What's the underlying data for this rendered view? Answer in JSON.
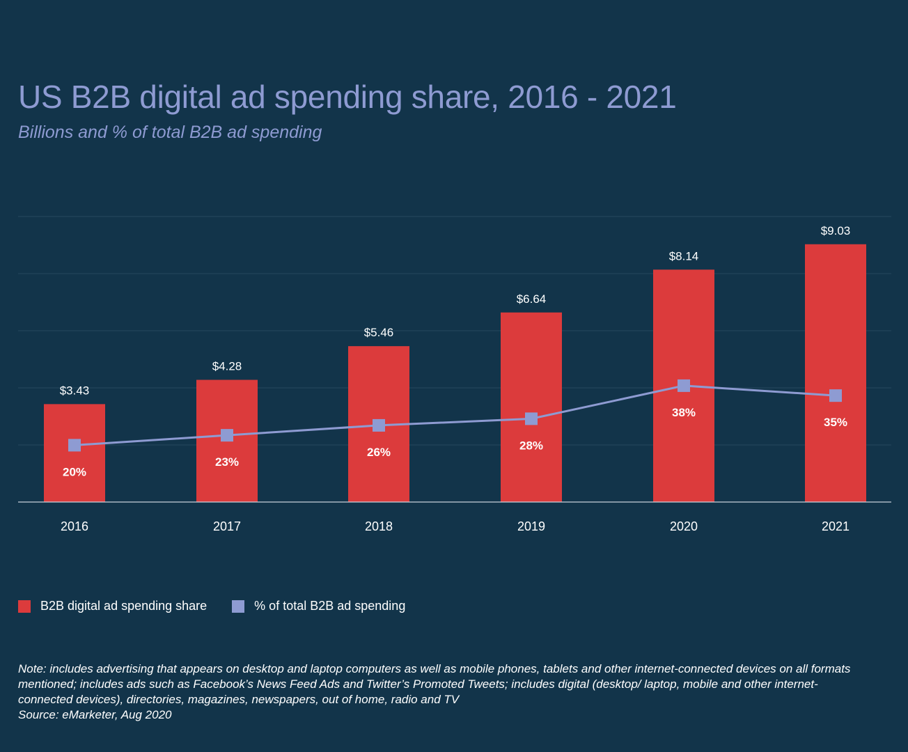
{
  "chart_data": {
    "type": "bar",
    "title": "US B2B digital ad spending share, 2016 - 2021",
    "subtitle": "Billions and % of total B2B ad spending",
    "categories": [
      "2016",
      "2017",
      "2018",
      "2019",
      "2020",
      "2021"
    ],
    "series": [
      {
        "name": "B2B digital ad spending share",
        "kind": "bar",
        "color": "#dc3b3c",
        "values": [
          3.43,
          4.28,
          5.46,
          6.64,
          8.14,
          9.03
        ],
        "labels": [
          "$3.43",
          "$4.28",
          "$5.46",
          "$6.64",
          "$8.14",
          "$9.03"
        ]
      },
      {
        "name": "% of total B2B ad spending",
        "kind": "line",
        "color": "#8e9bd2",
        "values": [
          20,
          23,
          26,
          28,
          38,
          35
        ],
        "labels": [
          "20%",
          "23%",
          "26%",
          "28%",
          "38%",
          "35%"
        ]
      }
    ],
    "xlabel": "",
    "ylabel": "",
    "grid": true,
    "legend_position": "bottom-left"
  },
  "footnote": {
    "note": "Note: includes advertising that appears on desktop and laptop computers as well as mobile phones, tablets and other internet-connected devices on all formats mentioned; includes ads such as Facebook’s News Feed Ads and Twitter’s Promoted Tweets; includes digital (desktop/ laptop, mobile and other internet-connected devices), directories, magazines, newspapers, out of home, radio and TV",
    "source": "Source: eMarketer, Aug 2020"
  },
  "colors": {
    "background": "#12344a",
    "bar": "#dc3b3c",
    "line": "#8e9bd2",
    "text": "#ffffff",
    "title": "#8e9bd2"
  }
}
